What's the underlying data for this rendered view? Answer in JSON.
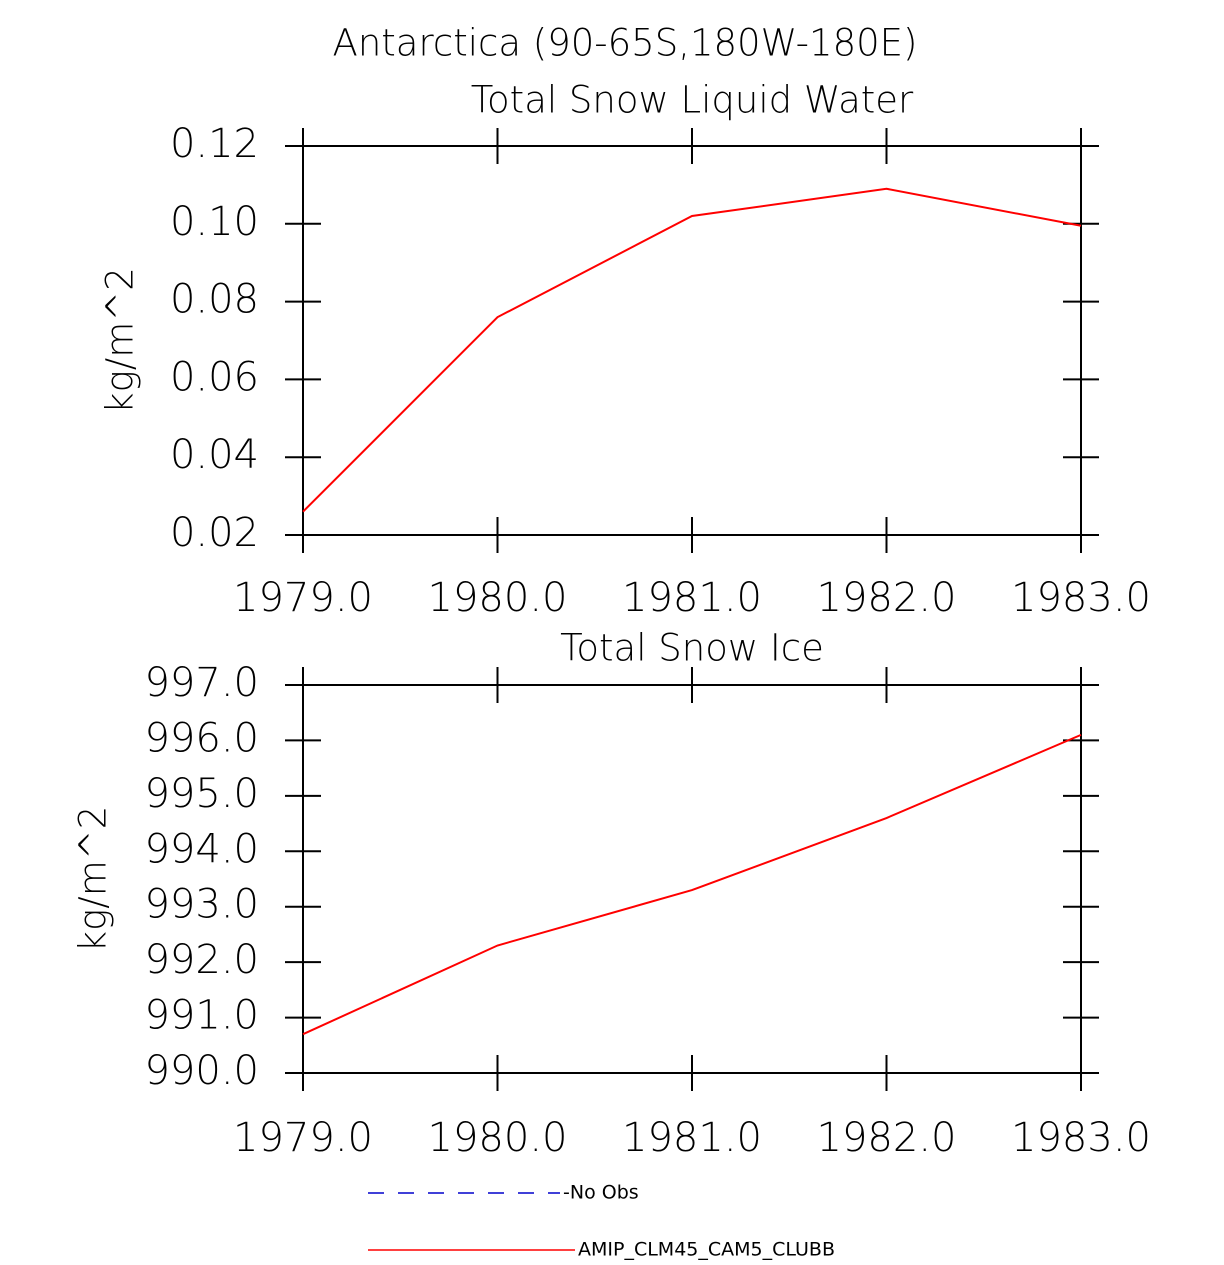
{
  "title": "Antarctica (90-65S,180W-180E)",
  "chart_data": [
    {
      "type": "line",
      "title": "Total Snow Liquid Water",
      "y_label": "kg/m^2",
      "x": [
        1979,
        1980,
        1981,
        1982,
        1983
      ],
      "series": [
        {
          "color": "#ff0000",
          "values": [
            0.026,
            0.076,
            0.102,
            0.109,
            0.0995
          ]
        }
      ],
      "xlim": [
        1979,
        1983
      ],
      "xticks": [
        {
          "value": 1979,
          "label": "1979.0"
        },
        {
          "value": 1980,
          "label": "1980.0"
        },
        {
          "value": 1981,
          "label": "1981.0"
        },
        {
          "value": 1982,
          "label": "1982.0"
        },
        {
          "value": 1983,
          "label": "1983.0"
        }
      ],
      "ylim": [
        0.02,
        0.12
      ],
      "yticks": [
        0.02,
        0.04,
        0.06,
        0.08,
        {
          "value": 0.1,
          "label": "0.10"
        },
        0.12
      ]
    },
    {
      "type": "line",
      "title": "Total Snow Ice",
      "y_label": "kg/m^2",
      "x": [
        1979,
        1980,
        1981,
        1982,
        1983
      ],
      "series": [
        {
          "color": "#ff0000",
          "values": [
            990.7,
            992.3,
            993.3,
            994.6,
            996.1
          ]
        }
      ],
      "xlim": [
        1979,
        1983
      ],
      "xticks": [
        {
          "value": 1979,
          "label": "1979.0"
        },
        {
          "value": 1980,
          "label": "1980.0"
        },
        {
          "value": 1981,
          "label": "1981.0"
        },
        {
          "value": 1982,
          "label": "1982.0"
        },
        {
          "value": 1983,
          "label": "1983.0"
        }
      ],
      "ylim": [
        990,
        997
      ],
      "yticks": [
        {
          "value": 990,
          "label": "990.0"
        },
        {
          "value": 991,
          "label": "991.0"
        },
        {
          "value": 992,
          "label": "992.0"
        },
        {
          "value": 993,
          "label": "993.0"
        },
        {
          "value": 994,
          "label": "994.0"
        },
        {
          "value": 995,
          "label": "995.0"
        },
        {
          "value": 996,
          "label": "996.0"
        },
        {
          "value": 997,
          "label": "997.0"
        }
      ]
    }
  ],
  "legend": [
    {
      "name": "No Obs",
      "color": "#0000cc",
      "dashed": true
    },
    {
      "name": "AMIP_CLM45_CAM5_CLUBB",
      "color": "#ff0000",
      "dashed": false
    }
  ]
}
